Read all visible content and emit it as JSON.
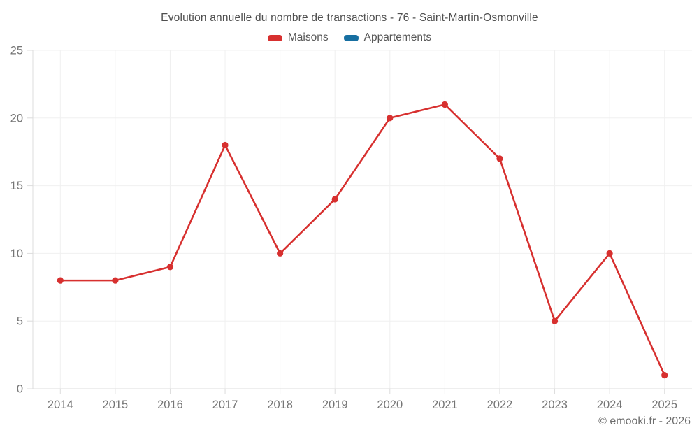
{
  "header": {
    "title": "Evolution annuelle du nombre de transactions - 76 - Saint-Martin-Osmonville"
  },
  "legend": {
    "items": [
      {
        "label": "Maisons",
        "color": "#d7302f"
      },
      {
        "label": "Appartements",
        "color": "#176fa1"
      }
    ]
  },
  "footer": {
    "credit": "© emooki.fr - 2026"
  },
  "chart_data": {
    "type": "line",
    "title": "Evolution annuelle du nombre de transactions - 76 - Saint-Martin-Osmonville",
    "categories": [
      "2014",
      "2015",
      "2016",
      "2017",
      "2018",
      "2019",
      "2020",
      "2021",
      "2022",
      "2023",
      "2024",
      "2025"
    ],
    "series": [
      {
        "name": "Maisons",
        "color": "#d7302f",
        "values": [
          8,
          8,
          9,
          18,
          10,
          14,
          20,
          21,
          17,
          5,
          10,
          1
        ]
      },
      {
        "name": "Appartements",
        "color": "#176fa1",
        "values": []
      }
    ],
    "xlabel": "",
    "ylabel": "",
    "ylim": [
      0,
      25
    ],
    "yticks": [
      0,
      5,
      10,
      15,
      20,
      25
    ],
    "grid": true,
    "legend_position": "top",
    "axis_color": "#dcdcdc",
    "grid_color": "#f0f0f0",
    "tick_label_color": "#757575"
  }
}
